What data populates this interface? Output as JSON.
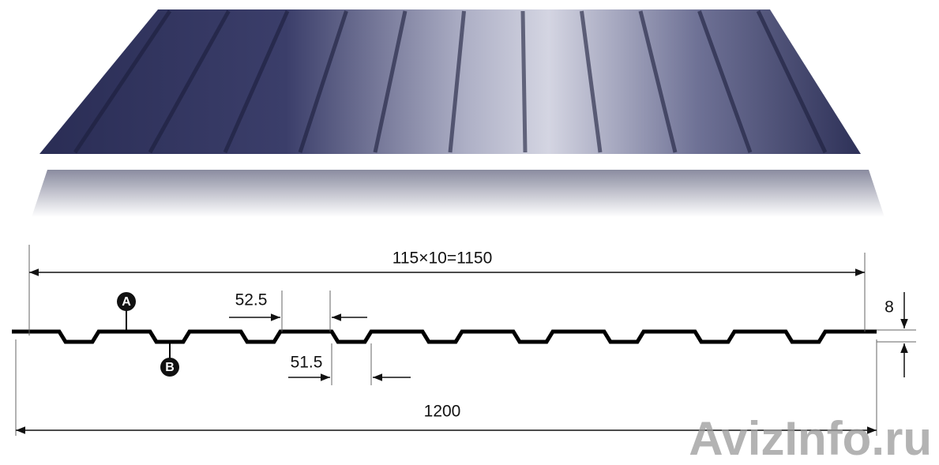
{
  "dimensions": {
    "pitch_total": "115×10=1150",
    "top_width": "52.5",
    "bottom_width": "51.5",
    "height": "8",
    "total_width": "1200"
  },
  "markers": {
    "a": "A",
    "b": "B"
  },
  "watermark": "AvizInfo.ru"
}
